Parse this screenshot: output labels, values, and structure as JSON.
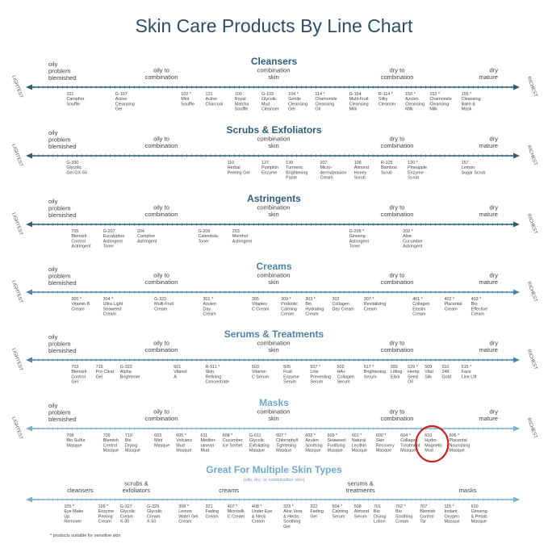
{
  "title": "Skin Care Products By Line Chart",
  "axis_ends": {
    "left": "LIGHTEST",
    "right": "RICHEST"
  },
  "skin_labels": {
    "oily": [
      "oily",
      "problem",
      "blemished"
    ],
    "oily_combo": [
      "oily to",
      "combination"
    ],
    "combo": [
      "combination",
      "skin"
    ],
    "dry_combo": [
      "dry to",
      "combination"
    ],
    "dry": [
      "dry",
      "mature"
    ]
  },
  "footnote": "* products suitable for sensitive skin",
  "colors": {
    "title": "#2b4d66",
    "section_title_dark": "#2e5d7a",
    "line_dark": "#2e5d7a",
    "section_title_mid": "#4d84a8",
    "line_mid": "#4d84a8",
    "section_title_light": "#6fa8c9",
    "line_light": "#7bb0cf",
    "highlight_circle": "#cc2222"
  },
  "chart_data": {
    "type": "line",
    "x_scale": "lightest to richest",
    "sections": [
      {
        "title": "Cleansers",
        "products": [
          {
            "x": 0.09,
            "label": [
              "101",
              "Camphor",
              "Souffle"
            ]
          },
          {
            "x": 0.19,
            "label": [
              "G-107",
              "Active",
              "Cleansing",
              "Gel"
            ]
          },
          {
            "x": 0.325,
            "label": [
              "102 *",
              "Mint",
              "Souffle"
            ]
          },
          {
            "x": 0.375,
            "label": [
              "121",
              "Active",
              "Charcoal"
            ]
          },
          {
            "x": 0.435,
            "label": [
              "100",
              "Royal",
              "Matcha",
              "Souffle"
            ]
          },
          {
            "x": 0.49,
            "label": [
              "G-103",
              "Glycolic",
              "Mud",
              "Cleanser"
            ]
          },
          {
            "x": 0.545,
            "label": [
              "104 *",
              "Gentle",
              "Cleansing",
              "Gel"
            ]
          },
          {
            "x": 0.6,
            "label": [
              "114 *",
              "Chamomile",
              "Cleansing",
              "Oil"
            ]
          },
          {
            "x": 0.67,
            "label": [
              "G-154",
              "Multi-Fruit",
              "Cleansing",
              "Milk"
            ]
          },
          {
            "x": 0.73,
            "label": [
              "R-114 *",
              "Silky",
              "Cleanser"
            ]
          },
          {
            "x": 0.785,
            "label": [
              "150 *",
              "Azulen",
              "Cleansing",
              "Milk"
            ]
          },
          {
            "x": 0.835,
            "label": [
              "152 *",
              "Chamomile",
              "Cleansing",
              "Milk"
            ]
          },
          {
            "x": 0.9,
            "label": [
              "155 *",
              "Cleansing",
              "Balm &",
              "Mask"
            ]
          }
        ]
      },
      {
        "title": "Scrubs & Exfoliators",
        "products": [
          {
            "x": 0.09,
            "label": [
              "G-330",
              "Glycolic",
              "Gel GX-50"
            ]
          },
          {
            "x": 0.42,
            "label": [
              "110",
              "Herbal",
              "Peeling Gel"
            ]
          },
          {
            "x": 0.49,
            "label": [
              "127",
              "Pumpkin",
              "Enzyme"
            ]
          },
          {
            "x": 0.54,
            "label": [
              "139",
              "Turmeric",
              "Brightening",
              "Paste"
            ]
          },
          {
            "x": 0.61,
            "label": [
              "107",
              "Micro-",
              "dermabrasion",
              "Cream"
            ]
          },
          {
            "x": 0.68,
            "label": [
              "106",
              "Almond",
              "Honey",
              "Scrub"
            ]
          },
          {
            "x": 0.735,
            "label": [
              "R-125",
              "Bamboo",
              "Scrub"
            ]
          },
          {
            "x": 0.79,
            "label": [
              "120 *",
              "Pineapple",
              "Enzyme",
              "Scrub"
            ]
          },
          {
            "x": 0.9,
            "label": [
              "157",
              "Lemon",
              "Sugar Scrub"
            ]
          }
        ]
      },
      {
        "title": "Astringents",
        "products": [
          {
            "x": 0.1,
            "label": [
              "705",
              "Blemish",
              "Control",
              "Astringent"
            ]
          },
          {
            "x": 0.165,
            "label": [
              "G-207",
              "Eucalyptus",
              "Astringent",
              "Toner"
            ]
          },
          {
            "x": 0.235,
            "label": [
              "204",
              "Camphor",
              "Astringent"
            ]
          },
          {
            "x": 0.36,
            "label": [
              "G-206",
              "Calendula",
              "Toner"
            ]
          },
          {
            "x": 0.43,
            "label": [
              "203",
              "Menthol",
              "Astringent"
            ]
          },
          {
            "x": 0.67,
            "label": [
              "G-205 *",
              "Ginseng",
              "Astringent",
              "Toner"
            ]
          },
          {
            "x": 0.78,
            "label": [
              "202 *",
              "Aloe",
              "Cucumber",
              "Astringent"
            ]
          }
        ]
      },
      {
        "title": "Creams",
        "products": [
          {
            "x": 0.1,
            "label": [
              "300 *",
              "Vitamin B",
              "Cream"
            ]
          },
          {
            "x": 0.165,
            "label": [
              "304 *",
              "Ultra Light",
              "Seaweed",
              "Cream"
            ]
          },
          {
            "x": 0.27,
            "label": [
              "G-323",
              "Multi-Fruit",
              "Cream"
            ]
          },
          {
            "x": 0.37,
            "label": [
              "301 *",
              "Azulen",
              "Day",
              "Cream"
            ]
          },
          {
            "x": 0.47,
            "label": [
              "305",
              "Vitaplex",
              "C Cream"
            ]
          },
          {
            "x": 0.53,
            "label": [
              "309 *",
              "Probiotic",
              "Calming",
              "Cream"
            ]
          },
          {
            "x": 0.58,
            "label": [
              "303 *",
              "Bio",
              "Hydrating",
              "Cream"
            ]
          },
          {
            "x": 0.635,
            "label": [
              "302",
              "Collagen",
              "Day Cream"
            ]
          },
          {
            "x": 0.7,
            "label": [
              "307 *",
              "Revitalizing",
              "Cream"
            ]
          },
          {
            "x": 0.8,
            "label": [
              "401 *",
              "Collagen",
              "Elastin",
              "Cream"
            ]
          },
          {
            "x": 0.865,
            "label": [
              "402 *",
              "Placental",
              "Cream"
            ]
          },
          {
            "x": 0.92,
            "label": [
              "403 *",
              "Bio",
              "Effective",
              "Cream"
            ]
          }
        ]
      },
      {
        "title": "Serums & Treatments",
        "products": [
          {
            "x": 0.1,
            "label": [
              "703",
              "Blemish",
              "Control",
              "Gel"
            ]
          },
          {
            "x": 0.15,
            "label": [
              "715",
              "Pro Clear",
              "Gel"
            ]
          },
          {
            "x": 0.2,
            "label": [
              "G-322",
              "Alpha",
              "Brightener"
            ]
          },
          {
            "x": 0.31,
            "label": [
              "501",
              "Vitanol",
              "A"
            ]
          },
          {
            "x": 0.375,
            "label": [
              "R-511 *",
              "Skin",
              "Refining",
              "Concentrate"
            ]
          },
          {
            "x": 0.47,
            "label": [
              "503",
              "Vitamin",
              "C Serum"
            ]
          },
          {
            "x": 0.535,
            "label": [
              "505",
              "Fruit",
              "Enzyme",
              "Serum"
            ]
          },
          {
            "x": 0.59,
            "label": [
              "507 *",
              "Line",
              "Preventing",
              "Serum"
            ]
          },
          {
            "x": 0.645,
            "label": [
              "502",
              "HA+",
              "Collagen",
              "Serum"
            ]
          },
          {
            "x": 0.7,
            "label": [
              "517 *",
              "Brightening",
              "Serum"
            ]
          },
          {
            "x": 0.755,
            "label": [
              "555",
              "Lifting",
              "Elixir"
            ]
          },
          {
            "x": 0.79,
            "label": [
              "529 *",
              "Hemp",
              "Seed",
              "Oil"
            ]
          },
          {
            "x": 0.825,
            "label": [
              "509",
              "Vital",
              "Silk"
            ]
          },
          {
            "x": 0.86,
            "label": [
              "510",
              "24K",
              "Gold"
            ]
          },
          {
            "x": 0.9,
            "label": [
              "515 *",
              "Face",
              "Line Lift"
            ]
          }
        ]
      },
      {
        "title": "Masks",
        "products": [
          {
            "x": 0.09,
            "label": [
              "708",
              "Bio Sulfur",
              "Masque"
            ]
          },
          {
            "x": 0.165,
            "label": [
              "709",
              "Blemish",
              "Control",
              "Masque"
            ]
          },
          {
            "x": 0.21,
            "label": [
              "710",
              "Bio",
              "Drying",
              "Masque"
            ]
          },
          {
            "x": 0.27,
            "label": [
              "603",
              "Mint",
              "Masque"
            ]
          },
          {
            "x": 0.315,
            "label": [
              "605 *",
              "Volcanic",
              "Mud",
              "Masque"
            ]
          },
          {
            "x": 0.365,
            "label": [
              "611",
              "Mediter-",
              "ranean",
              "Mud"
            ]
          },
          {
            "x": 0.41,
            "label": [
              "608 *",
              "Cucumber",
              "Ice Sorbet"
            ]
          },
          {
            "x": 0.465,
            "label": [
              "G-611",
              "Glycolic",
              "Exfoliating",
              "Masque"
            ]
          },
          {
            "x": 0.52,
            "label": [
              "607 *",
              "Chlorophyll",
              "Tightening",
              "Masque"
            ]
          },
          {
            "x": 0.58,
            "label": [
              "602 *",
              "Azulen",
              "Soothing",
              "Masque"
            ]
          },
          {
            "x": 0.625,
            "label": [
              "609 *",
              "Seaweed",
              "Fortifying",
              "Masque"
            ]
          },
          {
            "x": 0.675,
            "label": [
              "601 *",
              "Natural",
              "Lecithin",
              "Masque"
            ]
          },
          {
            "x": 0.725,
            "label": [
              "600 *",
              "Skin",
              "Recovery",
              "Masque"
            ]
          },
          {
            "x": 0.775,
            "label": [
              "604 *",
              "Collagen",
              "Treatment",
              "Masque"
            ]
          },
          {
            "x": 0.825,
            "label": [
              "610",
              "Hydro",
              "Magnetic",
              "Mud"
            ],
            "highlight": true
          },
          {
            "x": 0.875,
            "label": [
              "606 *",
              "Placental",
              "Nourishing",
              "Masque"
            ]
          }
        ]
      }
    ],
    "multi_skin": {
      "title": "Great For Multiple Skin Types",
      "subtitle": "(oily, dry, or combination skin)",
      "categories": [
        {
          "x": 0.105,
          "label": [
            "cleansers"
          ]
        },
        {
          "x": 0.22,
          "label": [
            "scrubs &",
            "exfoliators"
          ]
        },
        {
          "x": 0.41,
          "label": [
            "creams"
          ]
        },
        {
          "x": 0.68,
          "label": [
            "serums &",
            "treatments"
          ]
        },
        {
          "x": 0.9,
          "label": [
            "masks"
          ]
        }
      ],
      "products": [
        {
          "x": 0.085,
          "label": [
            "105 *",
            "Eye Make",
            "Up",
            "Remover"
          ]
        },
        {
          "x": 0.155,
          "label": [
            "109 *",
            "Enzyme",
            "Peeling",
            "Cream"
          ]
        },
        {
          "x": 0.2,
          "label": [
            "G-327",
            "Glycolic",
            "Cream",
            "X-30"
          ]
        },
        {
          "x": 0.255,
          "label": [
            "G-329",
            "Glycolic",
            "Cream",
            "X-50"
          ]
        },
        {
          "x": 0.32,
          "label": [
            "308 *",
            "Lemon",
            "Water Gel",
            "Cream"
          ]
        },
        {
          "x": 0.375,
          "label": [
            "321",
            "Fading",
            "Cream"
          ]
        },
        {
          "x": 0.42,
          "label": [
            "407 *",
            "Microsilk",
            "C Cream"
          ]
        },
        {
          "x": 0.47,
          "label": [
            "408 *",
            "Under Eye",
            "& Neck",
            "Cream"
          ]
        },
        {
          "x": 0.535,
          "label": [
            "323 *",
            "Aloe Vera",
            "& Herbs",
            "Soothing",
            "Gel"
          ]
        },
        {
          "x": 0.59,
          "label": [
            "322",
            "Fading",
            "Gel"
          ]
        },
        {
          "x": 0.635,
          "label": [
            "504 *",
            "Calming",
            "Serum"
          ]
        },
        {
          "x": 0.68,
          "label": [
            "508",
            "Almond",
            "Serum"
          ]
        },
        {
          "x": 0.72,
          "label": [
            "701",
            "Bio",
            "Drying",
            "Lotion"
          ]
        },
        {
          "x": 0.765,
          "label": [
            "702 *",
            "Bio",
            "Soothing",
            "Cream"
          ]
        },
        {
          "x": 0.815,
          "label": [
            "707",
            "Blemish",
            "Control",
            "Tar"
          ]
        },
        {
          "x": 0.865,
          "label": [
            "115 *",
            "Instant",
            "Oxygen",
            "Masque"
          ]
        },
        {
          "x": 0.92,
          "label": [
            "610",
            "Ginseng",
            "& Petals",
            "Masque"
          ]
        }
      ]
    }
  }
}
